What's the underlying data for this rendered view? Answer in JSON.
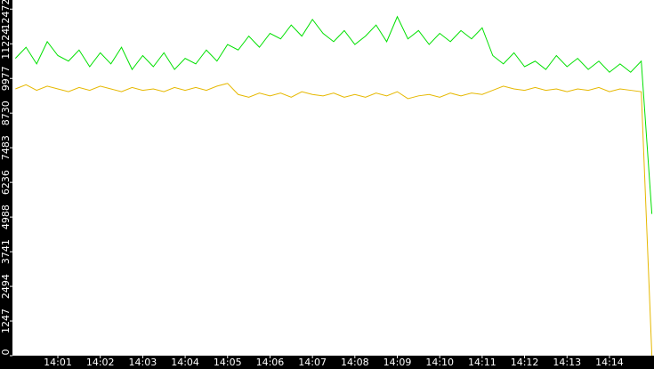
{
  "chart_data": {
    "type": "line",
    "x": [
      0,
      0.25,
      0.5,
      0.75,
      1,
      1.25,
      1.5,
      1.75,
      2,
      2.25,
      2.5,
      2.75,
      3,
      3.25,
      3.5,
      3.75,
      4,
      4.25,
      4.5,
      4.75,
      5,
      5.25,
      5.5,
      5.75,
      6,
      6.25,
      6.5,
      6.75,
      7,
      7.25,
      7.5,
      7.75,
      8,
      8.25,
      8.5,
      8.75,
      9,
      9.25,
      9.5,
      9.75,
      10,
      10.25,
      10.5,
      10.75,
      11,
      11.25,
      11.5,
      11.75,
      12,
      12.25,
      12.5,
      12.75,
      13,
      13.25,
      13.5,
      13.75,
      14,
      14.25,
      14.5,
      14.75,
      15
    ],
    "series": [
      {
        "color": "#00e000",
        "values": [
          10700,
          11100,
          10500,
          11300,
          10800,
          10600,
          11000,
          10400,
          10900,
          10500,
          11100,
          10300,
          10800,
          10400,
          10900,
          10300,
          10700,
          10500,
          11000,
          10600,
          11200,
          11000,
          11500,
          11100,
          11600,
          11400,
          11900,
          11500,
          12100,
          11600,
          11300,
          11700,
          11200,
          11500,
          11900,
          11300,
          12200,
          11400,
          11700,
          11200,
          11600,
          11300,
          11700,
          11400,
          11800,
          10800,
          10500,
          10900,
          10400,
          10600,
          10300,
          10800,
          10400,
          10700,
          10300,
          10600,
          10200,
          10500,
          10200,
          10600,
          5100
        ]
      },
      {
        "color": "#e6b800",
        "values": [
          9600,
          9750,
          9550,
          9700,
          9600,
          9500,
          9650,
          9550,
          9700,
          9600,
          9500,
          9650,
          9550,
          9600,
          9500,
          9650,
          9550,
          9650,
          9550,
          9700,
          9800,
          9400,
          9300,
          9450,
          9350,
          9450,
          9300,
          9500,
          9400,
          9350,
          9450,
          9300,
          9400,
          9300,
          9450,
          9350,
          9500,
          9250,
          9350,
          9400,
          9300,
          9450,
          9350,
          9450,
          9400,
          9550,
          9700,
          9600,
          9550,
          9650,
          9550,
          9600,
          9500,
          9600,
          9550,
          9650,
          9500,
          9600,
          9550,
          9500,
          0
        ]
      }
    ],
    "xlim": [
      -0.07,
      15.05
    ],
    "xticks": [
      {
        "value": 1,
        "label": "14:01"
      },
      {
        "value": 2,
        "label": "14:02"
      },
      {
        "value": 3,
        "label": "14:03"
      },
      {
        "value": 4,
        "label": "14:04"
      },
      {
        "value": 5,
        "label": "14:05"
      },
      {
        "value": 6,
        "label": "14:06"
      },
      {
        "value": 7,
        "label": "14:07"
      },
      {
        "value": 8,
        "label": "14:08"
      },
      {
        "value": 9,
        "label": "14:09"
      },
      {
        "value": 10,
        "label": "14:10"
      },
      {
        "value": 11,
        "label": "14:11"
      },
      {
        "value": 12,
        "label": "14:12"
      },
      {
        "value": 13,
        "label": "14:13"
      },
      {
        "value": 14,
        "label": "14:14"
      }
    ],
    "ylim": [
      0,
      12800
    ],
    "yticks": [
      0,
      1247,
      2494,
      3741,
      4988,
      6236,
      7483,
      8730,
      9977,
      11224,
      12472
    ]
  }
}
